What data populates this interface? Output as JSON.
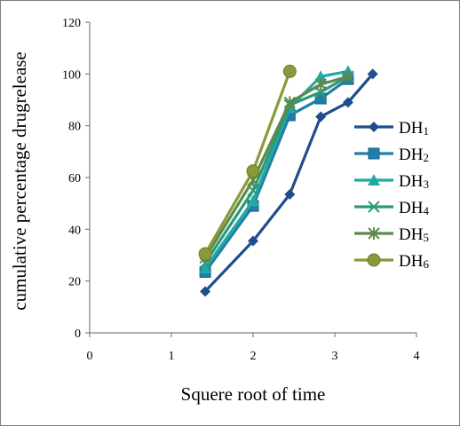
{
  "chart_data": {
    "type": "line",
    "title": "",
    "xlabel": "Squere root of time",
    "ylabel": "cumulative percentage drugrelease",
    "xlim": [
      0,
      4
    ],
    "ylim": [
      0,
      120
    ],
    "xticks": [
      "0",
      "1",
      "2",
      "3",
      "4"
    ],
    "yticks": [
      "0",
      "20",
      "40",
      "60",
      "80",
      "100",
      "120"
    ],
    "grid": false,
    "legend_position": "right",
    "series": [
      {
        "name": "DH",
        "sub": "1",
        "color": "#1f4e8c",
        "marker": "diamond",
        "x": [
          1.414,
          2.0,
          2.449,
          2.828,
          3.162,
          3.464
        ],
        "y": [
          16,
          35.5,
          53.5,
          83.5,
          89,
          100
        ]
      },
      {
        "name": "DH",
        "sub": "2",
        "color": "#1f7fa8",
        "marker": "square",
        "x": [
          1.414,
          2.0,
          2.449,
          2.828,
          3.162
        ],
        "y": [
          23.5,
          49,
          84,
          90.5,
          98
        ]
      },
      {
        "name": "DH",
        "sub": "3",
        "color": "#23a9a4",
        "marker": "triangle",
        "x": [
          1.414,
          2.0,
          2.449,
          2.828,
          3.162
        ],
        "y": [
          25,
          51,
          87,
          99,
          101
        ]
      },
      {
        "name": "DH",
        "sub": "4",
        "color": "#2a9a78",
        "marker": "x",
        "x": [
          1.414,
          2.0,
          2.449,
          2.828,
          3.162
        ],
        "y": [
          27,
          55,
          88,
          93,
          99
        ]
      },
      {
        "name": "DH",
        "sub": "5",
        "color": "#5a8a4e",
        "marker": "star",
        "x": [
          1.414,
          2.0,
          2.449,
          2.828,
          3.162
        ],
        "y": [
          29,
          59,
          89,
          96,
          99
        ]
      },
      {
        "name": "DH",
        "sub": "6",
        "color": "#8a9a3a",
        "marker": "circle",
        "x": [
          1.414,
          2.0,
          2.449
        ],
        "y": [
          30.5,
          62.5,
          101
        ]
      }
    ]
  }
}
